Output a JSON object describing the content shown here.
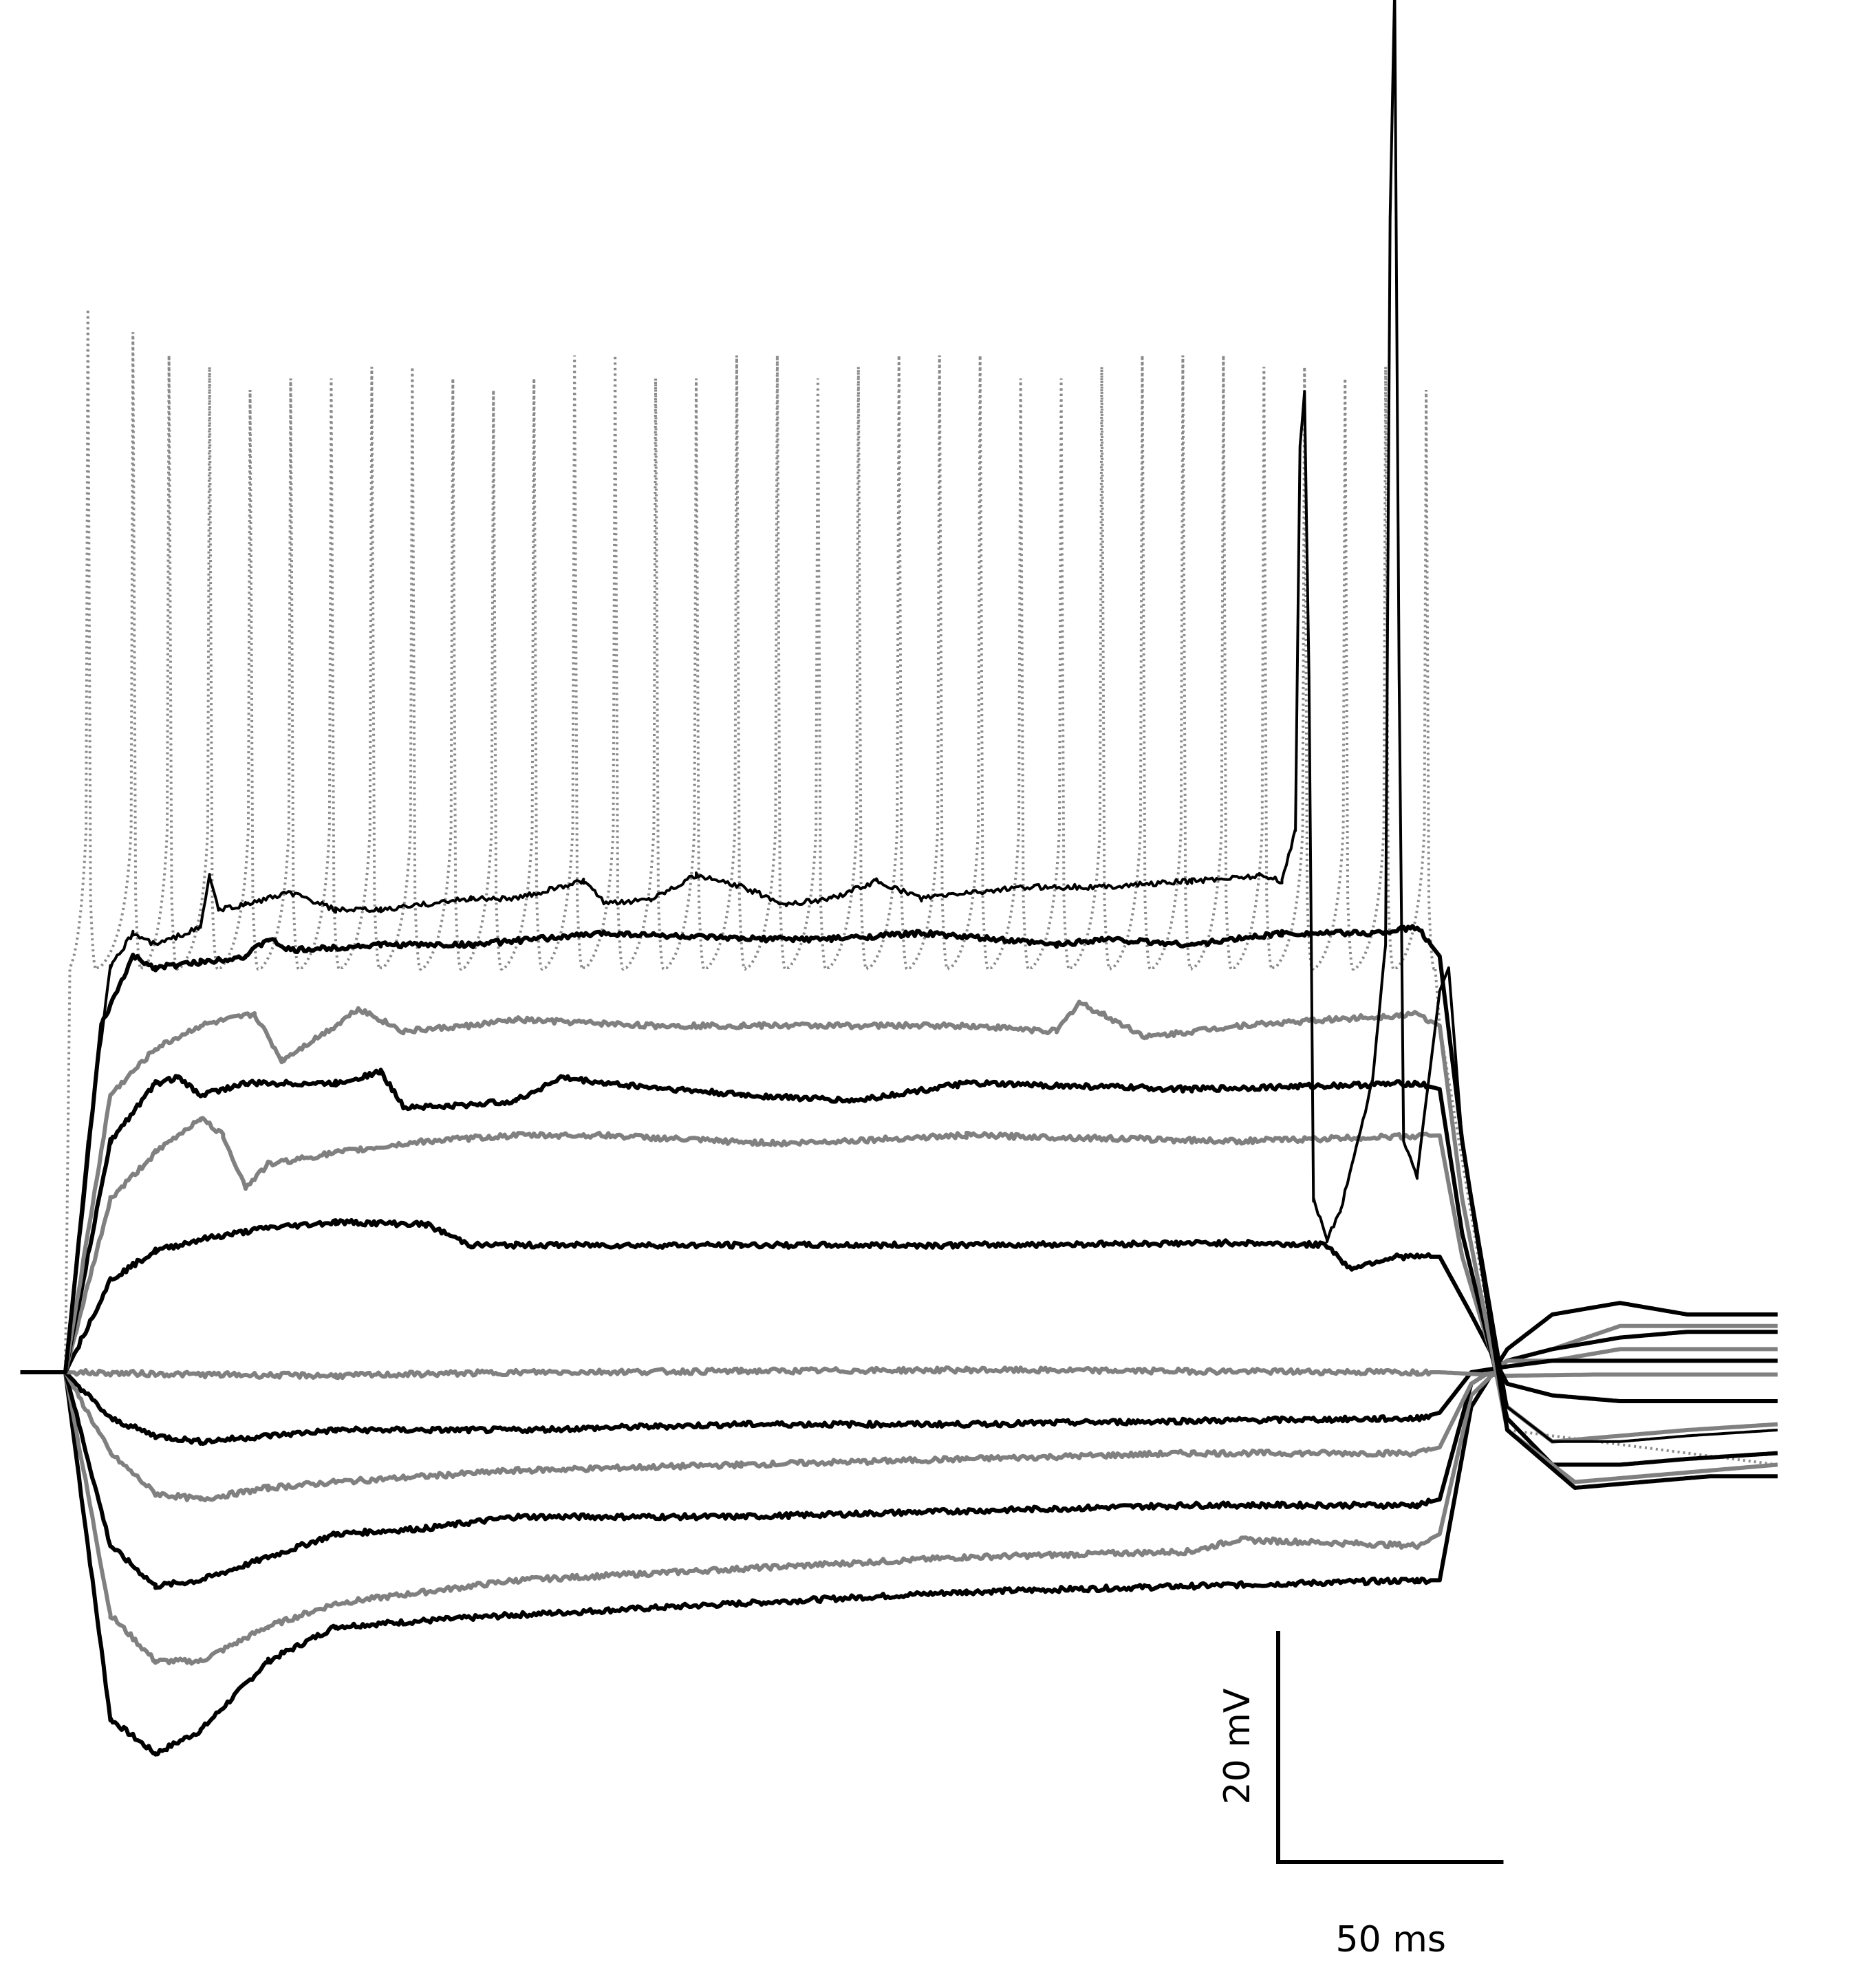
{
  "chart_data": {
    "type": "line",
    "title": "",
    "xlabel": "",
    "ylabel": "",
    "grid": false,
    "legend": "none",
    "axes_visible": false,
    "x_unit": "ms",
    "y_unit": "mV",
    "xlim": [
      -20,
      390
    ],
    "ylim": [
      -80,
      125
    ],
    "stimulus": {
      "onset_ms": 0,
      "offset_ms": 305
    },
    "colors": {
      "black": "#000000",
      "gray": "#808080",
      "dotted": "#8a8a8a"
    },
    "scale_bar": {
      "vertical_value": 20,
      "vertical_label": "20 mV",
      "horizontal_value": 50,
      "horizontal_label": "50 ms"
    },
    "series": [
      {
        "color": "black",
        "style": "solid",
        "points": [
          [
            -10,
            0
          ],
          [
            0,
            0
          ],
          [
            10,
            -30
          ],
          [
            20,
            -33
          ],
          [
            30,
            -31
          ],
          [
            45,
            -25
          ],
          [
            60,
            -22
          ],
          [
            100,
            -21
          ],
          [
            150,
            -20
          ],
          [
            200,
            -19
          ],
          [
            250,
            -18.5
          ],
          [
            300,
            -18
          ],
          [
            305,
            -18
          ],
          [
            312,
            -3
          ],
          [
            320,
            2
          ],
          [
            330,
            5
          ],
          [
            345,
            6
          ],
          [
            360,
            5
          ],
          [
            380,
            5
          ]
        ]
      },
      {
        "color": "gray",
        "style": "solid",
        "points": [
          [
            -10,
            0
          ],
          [
            0,
            0
          ],
          [
            10,
            -21
          ],
          [
            20,
            -25
          ],
          [
            30,
            -25
          ],
          [
            45,
            -22
          ],
          [
            60,
            -20
          ],
          [
            100,
            -18
          ],
          [
            150,
            -17
          ],
          [
            200,
            -16
          ],
          [
            250,
            -15.5
          ],
          [
            260,
            -14.5
          ],
          [
            300,
            -15
          ],
          [
            305,
            -14
          ],
          [
            312,
            -2
          ],
          [
            320,
            1
          ],
          [
            330,
            2
          ],
          [
            345,
            4
          ],
          [
            360,
            4
          ],
          [
            380,
            4
          ]
        ]
      },
      {
        "color": "black",
        "style": "solid",
        "points": [
          [
            -10,
            0
          ],
          [
            0,
            0
          ],
          [
            10,
            -15
          ],
          [
            20,
            -18.5
          ],
          [
            30,
            -18
          ],
          [
            45,
            -16
          ],
          [
            60,
            -14
          ],
          [
            80,
            -13.5
          ],
          [
            100,
            -12.5
          ],
          [
            150,
            -12.5
          ],
          [
            200,
            -12
          ],
          [
            250,
            -11.5
          ],
          [
            300,
            -11.5
          ],
          [
            305,
            -11
          ],
          [
            312,
            -1
          ],
          [
            320,
            1
          ],
          [
            330,
            2
          ],
          [
            345,
            3
          ],
          [
            360,
            3.5
          ],
          [
            380,
            3.5
          ]
        ]
      },
      {
        "color": "gray",
        "style": "solid",
        "points": [
          [
            -10,
            0
          ],
          [
            0,
            0
          ],
          [
            10,
            -7
          ],
          [
            20,
            -10.5
          ],
          [
            30,
            -11
          ],
          [
            45,
            -10
          ],
          [
            60,
            -9.5
          ],
          [
            100,
            -8.5
          ],
          [
            150,
            -8
          ],
          [
            200,
            -7.5
          ],
          [
            250,
            -7
          ],
          [
            300,
            -7
          ],
          [
            305,
            -6.5
          ],
          [
            312,
            -1
          ],
          [
            320,
            1
          ],
          [
            330,
            1
          ],
          [
            345,
            2
          ],
          [
            360,
            2
          ],
          [
            380,
            2
          ]
        ]
      },
      {
        "color": "black",
        "style": "solid",
        "points": [
          [
            -10,
            0
          ],
          [
            0,
            0
          ],
          [
            10,
            -4
          ],
          [
            20,
            -5.5
          ],
          [
            30,
            -6
          ],
          [
            45,
            -5.5
          ],
          [
            60,
            -5
          ],
          [
            100,
            -5
          ],
          [
            150,
            -4.5
          ],
          [
            200,
            -4.5
          ],
          [
            250,
            -4.2
          ],
          [
            300,
            -4
          ],
          [
            305,
            -3.5
          ],
          [
            312,
            0
          ],
          [
            320,
            0.5
          ],
          [
            330,
            1
          ],
          [
            345,
            1
          ],
          [
            360,
            1
          ],
          [
            380,
            1
          ]
        ]
      },
      {
        "color": "gray",
        "style": "solid",
        "points": [
          [
            -10,
            0
          ],
          [
            0,
            0
          ],
          [
            30,
            -0.2
          ],
          [
            60,
            -0.3
          ],
          [
            100,
            0
          ],
          [
            150,
            0.1
          ],
          [
            200,
            0.2
          ],
          [
            250,
            0.1
          ],
          [
            300,
            0
          ],
          [
            305,
            0
          ],
          [
            320,
            -0.3
          ],
          [
            340,
            -0.2
          ],
          [
            380,
            -0.2
          ]
        ]
      },
      {
        "color": "black",
        "style": "solid",
        "points": [
          [
            -10,
            0
          ],
          [
            0,
            0
          ],
          [
            10,
            8
          ],
          [
            20,
            10.5
          ],
          [
            30,
            11.5
          ],
          [
            45,
            12.5
          ],
          [
            60,
            13
          ],
          [
            80,
            12.8
          ],
          [
            90,
            11
          ],
          [
            100,
            11
          ],
          [
            150,
            11
          ],
          [
            200,
            11
          ],
          [
            260,
            11.2
          ],
          [
            280,
            11
          ],
          [
            285,
            9
          ],
          [
            295,
            10
          ],
          [
            305,
            10
          ],
          [
            312,
            5
          ],
          [
            320,
            -1
          ],
          [
            330,
            -2
          ],
          [
            345,
            -2.5
          ],
          [
            360,
            -2.5
          ],
          [
            380,
            -2.5
          ]
        ]
      },
      {
        "color": "gray",
        "style": "solid",
        "points": [
          [
            -10,
            0
          ],
          [
            0,
            0
          ],
          [
            10,
            15
          ],
          [
            20,
            19
          ],
          [
            30,
            22
          ],
          [
            35,
            20.5
          ],
          [
            40,
            16
          ],
          [
            45,
            18
          ],
          [
            60,
            19
          ],
          [
            80,
            20
          ],
          [
            100,
            20.5
          ],
          [
            120,
            20.5
          ],
          [
            145,
            20
          ],
          [
            160,
            19.8
          ],
          [
            200,
            20.5
          ],
          [
            260,
            20
          ],
          [
            305,
            20.5
          ],
          [
            310,
            10
          ],
          [
            320,
            -3
          ],
          [
            330,
            -6
          ],
          [
            345,
            -5.5
          ],
          [
            360,
            -5
          ],
          [
            380,
            -4.5
          ]
        ]
      },
      {
        "color": "black",
        "style": "solid",
        "points": [
          [
            -10,
            0
          ],
          [
            0,
            0
          ],
          [
            10,
            20
          ],
          [
            20,
            25
          ],
          [
            25,
            25.5
          ],
          [
            30,
            24
          ],
          [
            40,
            25
          ],
          [
            60,
            25
          ],
          [
            70,
            26
          ],
          [
            75,
            23
          ],
          [
            85,
            23
          ],
          [
            100,
            23.5
          ],
          [
            110,
            25.5
          ],
          [
            120,
            25
          ],
          [
            150,
            24
          ],
          [
            175,
            23.5
          ],
          [
            200,
            25
          ],
          [
            250,
            24.5
          ],
          [
            300,
            25
          ],
          [
            305,
            24.5
          ],
          [
            310,
            12
          ],
          [
            320,
            -4
          ],
          [
            330,
            -8
          ],
          [
            345,
            -8
          ],
          [
            360,
            -7.5
          ],
          [
            380,
            -7
          ]
        ]
      },
      {
        "color": "gray",
        "style": "solid",
        "points": [
          [
            -10,
            0
          ],
          [
            0,
            0
          ],
          [
            10,
            24
          ],
          [
            20,
            28
          ],
          [
            30,
            30
          ],
          [
            42,
            31
          ],
          [
            48,
            27
          ],
          [
            60,
            30
          ],
          [
            65,
            31.5
          ],
          [
            75,
            29.5
          ],
          [
            90,
            30
          ],
          [
            100,
            30.5
          ],
          [
            130,
            30
          ],
          [
            150,
            30
          ],
          [
            200,
            30
          ],
          [
            220,
            29.5
          ],
          [
            225,
            32
          ],
          [
            230,
            31
          ],
          [
            240,
            29
          ],
          [
            260,
            30
          ],
          [
            280,
            30.5
          ],
          [
            300,
            31
          ],
          [
            305,
            30
          ],
          [
            310,
            15
          ],
          [
            320,
            -5
          ],
          [
            335,
            -9.5
          ],
          [
            350,
            -9
          ],
          [
            365,
            -8.5
          ],
          [
            380,
            -8
          ]
        ]
      },
      {
        "color": "black",
        "style": "solid",
        "points": [
          [
            -10,
            0
          ],
          [
            0,
            0
          ],
          [
            8,
            30
          ],
          [
            15,
            36
          ],
          [
            20,
            35
          ],
          [
            30,
            35.5
          ],
          [
            40,
            36
          ],
          [
            45,
            37.5
          ],
          [
            50,
            36.5
          ],
          [
            70,
            37
          ],
          [
            90,
            37
          ],
          [
            120,
            38
          ],
          [
            150,
            37.5
          ],
          [
            170,
            37.5
          ],
          [
            190,
            38
          ],
          [
            220,
            37
          ],
          [
            230,
            37.5
          ],
          [
            250,
            37
          ],
          [
            270,
            38
          ],
          [
            290,
            38
          ],
          [
            300,
            38.5
          ],
          [
            305,
            36
          ],
          [
            310,
            20
          ],
          [
            320,
            -5
          ],
          [
            335,
            -10
          ],
          [
            350,
            -9.5
          ],
          [
            365,
            -9
          ],
          [
            380,
            -9
          ]
        ]
      },
      {
        "color": "black",
        "style": "solid",
        "points": [
          [
            -10,
            0
          ],
          [
            0,
            0
          ],
          [
            5,
            20
          ],
          [
            10,
            35
          ],
          [
            15,
            38
          ],
          [
            20,
            37
          ],
          [
            30,
            38.5
          ],
          [
            32,
            43
          ],
          [
            34,
            40
          ],
          [
            40,
            40.5
          ],
          [
            50,
            41.5
          ],
          [
            60,
            40
          ],
          [
            70,
            40
          ],
          [
            80,
            40.5
          ],
          [
            90,
            41
          ],
          [
            100,
            41
          ],
          [
            115,
            42.5
          ],
          [
            120,
            40.5
          ],
          [
            130,
            41
          ],
          [
            140,
            43
          ],
          [
            150,
            42
          ],
          [
            160,
            40.5
          ],
          [
            170,
            41
          ],
          [
            180,
            42.5
          ],
          [
            190,
            41
          ],
          [
            200,
            41.5
          ],
          [
            215,
            42
          ],
          [
            230,
            42
          ],
          [
            250,
            42.5
          ],
          [
            265,
            43
          ],
          [
            270,
            42.5
          ],
          [
            273,
            47
          ],
          [
            274,
            80
          ],
          [
            275,
            85
          ],
          [
            276,
            60
          ],
          [
            277,
            15
          ],
          [
            280,
            11.5
          ],
          [
            283,
            14
          ],
          [
            290,
            25
          ],
          [
            293,
            37
          ],
          [
            294,
            100
          ],
          [
            295,
            120
          ],
          [
            296,
            60
          ],
          [
            297,
            20
          ],
          [
            300,
            17
          ],
          [
            305,
            33
          ],
          [
            307,
            35
          ],
          [
            310,
            20
          ],
          [
            320,
            -3
          ],
          [
            330,
            -6
          ],
          [
            345,
            -6
          ],
          [
            360,
            -5.5
          ],
          [
            380,
            -5
          ]
        ]
      },
      {
        "color": "dotted",
        "style": "dotted",
        "spike_times": [
          5,
          15,
          23,
          32,
          41,
          50,
          59,
          68,
          77,
          86,
          95,
          104,
          113,
          122,
          131,
          140,
          149,
          158,
          167,
          176,
          185,
          194,
          203,
          212,
          221,
          230,
          239,
          248,
          257,
          266,
          275,
          284,
          293,
          302
        ],
        "spike_peaks": [
          92,
          90,
          88,
          87,
          85,
          86,
          86,
          87,
          87,
          86,
          85,
          86,
          88,
          88,
          86,
          86,
          88,
          88,
          86,
          87,
          88,
          88,
          88,
          86,
          86,
          87,
          88,
          88,
          88,
          87,
          87,
          86,
          87,
          85
        ],
        "trough": 35,
        "points": [
          [
            -10,
            0
          ],
          [
            0,
            0
          ],
          [
            305,
            30
          ],
          [
            320,
            -5
          ],
          [
            380,
            -8
          ]
        ]
      }
    ]
  }
}
